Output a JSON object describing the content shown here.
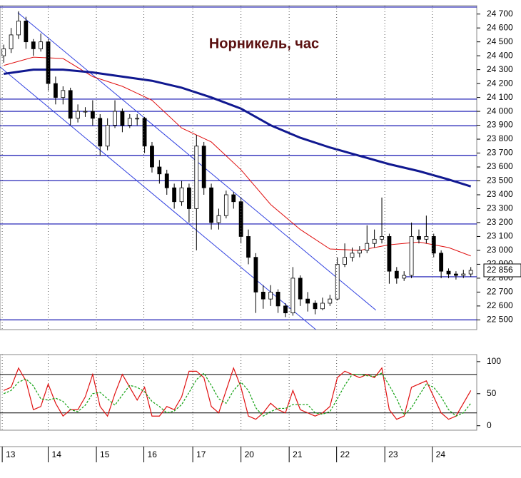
{
  "chart_data": [
    {
      "type": "candlestick",
      "title": "Норникель, час",
      "xlim": [
        -0.5,
        63.8
      ],
      "ylim": [
        22430,
        24760
      ],
      "yticks": [
        {
          "value": 22500,
          "label": "22 500"
        },
        {
          "value": 22600,
          "label": "22 600"
        },
        {
          "value": 22700,
          "label": "22 700"
        },
        {
          "value": 22800,
          "label": "22 800"
        },
        {
          "value": 22900,
          "label": "22 900"
        },
        {
          "value": 23000,
          "label": "23 000"
        },
        {
          "value": 23100,
          "label": "23 100"
        },
        {
          "value": 23200,
          "label": "23 200"
        },
        {
          "value": 23300,
          "label": "23 300"
        },
        {
          "value": 23400,
          "label": "23 400"
        },
        {
          "value": 23500,
          "label": "23 500"
        },
        {
          "value": 23600,
          "label": "23 600"
        },
        {
          "value": 23700,
          "label": "23 700"
        },
        {
          "value": 23800,
          "label": "23 800"
        },
        {
          "value": 23900,
          "label": "23 900"
        },
        {
          "value": 24000,
          "label": "24 000"
        },
        {
          "value": 24100,
          "label": "24 100"
        },
        {
          "value": 24200,
          "label": "24 200"
        },
        {
          "value": 24300,
          "label": "24 300"
        },
        {
          "value": 24400,
          "label": "24 400"
        },
        {
          "value": 24500,
          "label": "24 500"
        },
        {
          "value": 24600,
          "label": "24 600"
        },
        {
          "value": 24700,
          "label": "24 700"
        }
      ],
      "last_price": {
        "value": 22856,
        "label": "22 856"
      },
      "series": [
        {
          "up_color": "#ffffff",
          "down_color": "#000000",
          "values": [
            [
              24400,
              24480,
              24350,
              24450
            ],
            [
              24450,
              24600,
              24420,
              24550
            ],
            [
              24550,
              24720,
              24520,
              24650
            ],
            [
              24650,
              24680,
              24450,
              24500
            ],
            [
              24500,
              24520,
              24400,
              24450
            ],
            [
              24450,
              24560,
              24430,
              24500
            ],
            [
              24500,
              24520,
              24150,
              24200
            ],
            [
              24200,
              24250,
              24050,
              24100
            ],
            [
              24100,
              24180,
              24050,
              24150
            ],
            [
              24150,
              24170,
              23900,
              23950
            ],
            [
              23950,
              24050,
              23920,
              24000
            ],
            [
              24000,
              24030,
              23960,
              24000
            ],
            [
              24000,
              24080,
              23900,
              23950
            ],
            [
              23950,
              23980,
              23680,
              23750
            ],
            [
              23750,
              23950,
              23720,
              23900
            ],
            [
              23900,
              24080,
              23880,
              24000
            ],
            [
              24000,
              24020,
              23850,
              23900
            ],
            [
              23900,
              23980,
              23880,
              23950
            ],
            [
              23950,
              23980,
              23900,
              23950
            ],
            [
              23950,
              23960,
              23700,
              23750
            ],
            [
              23750,
              23780,
              23560,
              23600
            ],
            [
              23600,
              23650,
              23480,
              23550
            ],
            [
              23550,
              23580,
              23400,
              23450
            ],
            [
              23450,
              23480,
              23300,
              23350
            ],
            [
              23350,
              23500,
              23320,
              23450
            ],
            [
              23450,
              23480,
              23200,
              23300
            ],
            [
              23300,
              23830,
              23000,
              23750
            ],
            [
              23750,
              23780,
              23400,
              23450
            ],
            [
              23450,
              23480,
              23150,
              23200
            ],
            [
              23200,
              23300,
              23150,
              23250
            ],
            [
              23250,
              23430,
              23230,
              23400
            ],
            [
              23400,
              23420,
              23300,
              23350
            ],
            [
              23350,
              23380,
              23050,
              23100
            ],
            [
              23100,
              23150,
              22900,
              22950
            ],
            [
              22950,
              22980,
              22550,
              22700
            ],
            [
              22700,
              22750,
              22580,
              22650
            ],
            [
              22650,
              22750,
              22600,
              22700
            ],
            [
              22700,
              22720,
              22550,
              22600
            ],
            [
              22600,
              22620,
              22520,
              22550
            ],
            [
              22550,
              22880,
              22530,
              22800
            ],
            [
              22800,
              22820,
              22600,
              22650
            ],
            [
              22650,
              22700,
              22560,
              22620
            ],
            [
              22620,
              22640,
              22540,
              22580
            ],
            [
              22580,
              22660,
              22570,
              22620
            ],
            [
              22620,
              22680,
              22600,
              22650
            ],
            [
              22650,
              22950,
              22640,
              22900
            ],
            [
              22900,
              23050,
              22880,
              22950
            ],
            [
              22950,
              23020,
              22920,
              22980
            ],
            [
              22980,
              23030,
              22950,
              23000
            ],
            [
              23000,
              23180,
              22980,
              23050
            ],
            [
              23050,
              23150,
              23020,
              23080
            ],
            [
              23080,
              23380,
              23050,
              23100
            ],
            [
              23100,
              23120,
              22760,
              22850
            ],
            [
              22850,
              22880,
              22760,
              22800
            ],
            [
              22800,
              22850,
              22780,
              22820
            ],
            [
              22820,
              23200,
              22800,
              23100
            ],
            [
              23100,
              23150,
              23050,
              23080
            ],
            [
              23080,
              23250,
              23050,
              23100
            ],
            [
              23100,
              23120,
              22950,
              22980
            ],
            [
              22980,
              23000,
              22800,
              22850
            ],
            [
              22850,
              22870,
              22800,
              22830
            ],
            [
              22830,
              22850,
              22790,
              22820
            ],
            [
              22820,
              22860,
              22800,
              22830
            ],
            [
              22830,
              22880,
              22810,
              22856
            ]
          ]
        }
      ],
      "lines": [
        {
          "color": "#e01010",
          "width": 1,
          "x": [
            0,
            4,
            8,
            12,
            16,
            20,
            24,
            28,
            32,
            36,
            40,
            44,
            48,
            52,
            56,
            60,
            63
          ],
          "values": [
            24330,
            24390,
            24380,
            24250,
            24180,
            24080,
            23880,
            23780,
            23580,
            23330,
            23150,
            23010,
            23000,
            23040,
            23060,
            23020,
            22960
          ]
        },
        {
          "color": "#101890",
          "width": 3,
          "x": [
            0,
            4,
            8,
            12,
            16,
            20,
            24,
            28,
            32,
            36,
            40,
            44,
            48,
            52,
            56,
            60,
            63
          ],
          "values": [
            24270,
            24300,
            24300,
            24280,
            24250,
            24220,
            24170,
            24100,
            24020,
            23900,
            23810,
            23740,
            23680,
            23620,
            23570,
            23510,
            23460
          ]
        }
      ],
      "levels": {
        "color": "#1010b0",
        "values": [
          24750,
          24088,
          24000,
          23896,
          23683,
          23501,
          23190,
          22500
        ]
      },
      "support": {
        "color": "#1010b0",
        "from": 54,
        "value": 22810
      },
      "trendlines": {
        "color": "#3040e0",
        "lines": [
          {
            "x": [
              1.9,
              50.2
            ],
            "values": [
              24710,
              22570
            ]
          },
          {
            "x": [
              -0.5,
              42.1
            ],
            "values": [
              24320,
              22430
            ]
          }
        ]
      }
    },
    {
      "type": "line",
      "xlim": [
        -0.5,
        63.8
      ],
      "ylim": [
        -7,
        111
      ],
      "yticks": [
        0,
        50,
        100
      ],
      "levels": [
        20,
        80
      ],
      "xticks": [
        {
          "value": -0.2,
          "label": "13"
        },
        {
          "value": 6.0,
          "label": "14"
        },
        {
          "value": 12.5,
          "label": "15"
        },
        {
          "value": 18.9,
          "label": "16"
        },
        {
          "value": 25.5,
          "label": "17"
        },
        {
          "value": 32.0,
          "label": "20"
        },
        {
          "value": 38.5,
          "label": "21"
        },
        {
          "value": 44.9,
          "label": "22"
        },
        {
          "value": 51.4,
          "label": "23"
        },
        {
          "value": 57.8,
          "label": "24"
        }
      ],
      "series": [
        {
          "color": "#e01010",
          "dash": false,
          "values": [
            55,
            60,
            90,
            70,
            25,
            30,
            65,
            35,
            15,
            25,
            25,
            45,
            80,
            30,
            15,
            50,
            80,
            60,
            40,
            60,
            15,
            15,
            30,
            25,
            45,
            85,
            85,
            75,
            30,
            20,
            55,
            90,
            60,
            15,
            10,
            20,
            35,
            25,
            20,
            55,
            25,
            20,
            15,
            20,
            30,
            75,
            85,
            80,
            75,
            80,
            75,
            90,
            25,
            10,
            15,
            60,
            65,
            70,
            45,
            20,
            10,
            15,
            35,
            55
          ]
        },
        {
          "color": "#10a010",
          "dash": true,
          "values": [
            50,
            55,
            68,
            73,
            62,
            42,
            40,
            43,
            38,
            25,
            22,
            32,
            50,
            52,
            42,
            32,
            48,
            63,
            60,
            53,
            38,
            30,
            20,
            23,
            33,
            52,
            72,
            82,
            63,
            42,
            35,
            55,
            68,
            55,
            28,
            15,
            22,
            27,
            27,
            33,
            33,
            33,
            20,
            18,
            22,
            42,
            63,
            80,
            80,
            78,
            77,
            82,
            63,
            42,
            17,
            28,
            47,
            65,
            60,
            45,
            25,
            15,
            20,
            35
          ]
        }
      ]
    }
  ]
}
